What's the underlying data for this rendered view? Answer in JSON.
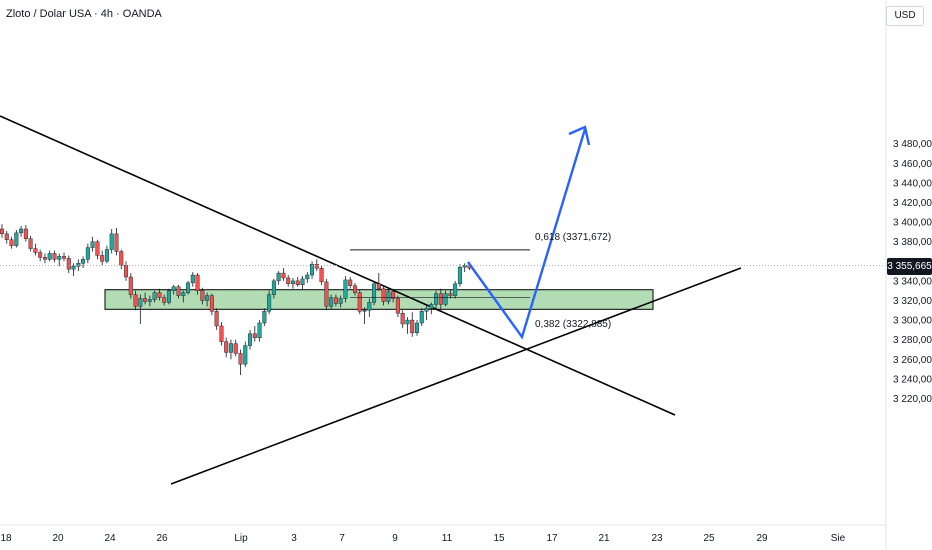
{
  "header": {
    "title": "Zloto / Dolar USA · 4h · OANDA",
    "currency": "USD"
  },
  "price_tag": "3 355,665",
  "fib_levels": [
    {
      "label": "0,618 (3371,672)",
      "value": 3371.672
    },
    {
      "label": "0,382 (3322,885)",
      "value": 3322.885
    }
  ],
  "colors": {
    "up": "#26a69a",
    "down": "#ef5350",
    "zone_fill": "#a5d6a7",
    "zone_border": "#000000",
    "projection": "#2962ff",
    "trendline": "#000000"
  },
  "chart_data": {
    "type": "candlestick",
    "y_axis": {
      "ticks": [
        "3 480,000",
        "3 460,000",
        "3 440,000",
        "3 420,000",
        "3 400,000",
        "3 380,000",
        "3 360,000",
        "3 340,000",
        "3 320,000",
        "3 300,000",
        "3 280,000",
        "3 260,000",
        "3 240,000",
        "3 220,000"
      ],
      "tick_values": [
        3480,
        3460,
        3440,
        3420,
        3400,
        3380,
        3360,
        3340,
        3320,
        3300,
        3280,
        3260,
        3240,
        3220
      ],
      "range": [
        3211,
        3500
      ]
    },
    "x_axis": {
      "labels": [
        "18",
        "20",
        "24",
        "26",
        "Lip",
        "3",
        "7",
        "9",
        "11",
        "15",
        "17",
        "21",
        "23",
        "25",
        "29",
        "Sie"
      ]
    },
    "current_price": 3355.665,
    "support_zone": [
      3311,
      3331
    ],
    "candles": [
      [
        3393,
        3398,
        3384,
        3388
      ],
      [
        3388,
        3391,
        3378,
        3382
      ],
      [
        3382,
        3385,
        3373,
        3376
      ],
      [
        3376,
        3392,
        3374,
        3389
      ],
      [
        3389,
        3396,
        3385,
        3393
      ],
      [
        3393,
        3397,
        3380,
        3383
      ],
      [
        3383,
        3386,
        3370,
        3373
      ],
      [
        3373,
        3378,
        3366,
        3369
      ],
      [
        3369,
        3372,
        3360,
        3364
      ],
      [
        3364,
        3368,
        3358,
        3362
      ],
      [
        3362,
        3371,
        3360,
        3368
      ],
      [
        3368,
        3371,
        3359,
        3362
      ],
      [
        3362,
        3368,
        3355,
        3365
      ],
      [
        3365,
        3369,
        3360,
        3363
      ],
      [
        3363,
        3366,
        3348,
        3352
      ],
      [
        3352,
        3358,
        3345,
        3355
      ],
      [
        3355,
        3362,
        3350,
        3358
      ],
      [
        3358,
        3365,
        3353,
        3362
      ],
      [
        3362,
        3378,
        3358,
        3374
      ],
      [
        3374,
        3385,
        3370,
        3380
      ],
      [
        3380,
        3382,
        3362,
        3366
      ],
      [
        3366,
        3371,
        3356,
        3360
      ],
      [
        3360,
        3376,
        3358,
        3372
      ],
      [
        3372,
        3393,
        3368,
        3388
      ],
      [
        3388,
        3394,
        3366,
        3370
      ],
      [
        3370,
        3372,
        3352,
        3356
      ],
      [
        3356,
        3360,
        3340,
        3344
      ],
      [
        3344,
        3348,
        3322,
        3326
      ],
      [
        3326,
        3330,
        3310,
        3314
      ],
      [
        3314,
        3326,
        3296,
        3322
      ],
      [
        3322,
        3328,
        3316,
        3319
      ],
      [
        3319,
        3325,
        3314,
        3321
      ],
      [
        3321,
        3330,
        3318,
        3328
      ],
      [
        3328,
        3332,
        3320,
        3323
      ],
      [
        3323,
        3326,
        3315,
        3318
      ],
      [
        3318,
        3332,
        3316,
        3330
      ],
      [
        3330,
        3336,
        3326,
        3334
      ],
      [
        3334,
        3336,
        3322,
        3325
      ],
      [
        3325,
        3330,
        3318,
        3328
      ],
      [
        3328,
        3340,
        3326,
        3338
      ],
      [
        3338,
        3349,
        3334,
        3346
      ],
      [
        3346,
        3348,
        3326,
        3330
      ],
      [
        3330,
        3333,
        3316,
        3320
      ],
      [
        3320,
        3328,
        3314,
        3325
      ],
      [
        3325,
        3327,
        3305,
        3309
      ],
      [
        3309,
        3312,
        3290,
        3294
      ],
      [
        3294,
        3298,
        3274,
        3278
      ],
      [
        3278,
        3282,
        3262,
        3267
      ],
      [
        3267,
        3280,
        3260,
        3276
      ],
      [
        3276,
        3280,
        3263,
        3266
      ],
      [
        3266,
        3270,
        3244,
        3255
      ],
      [
        3255,
        3278,
        3252,
        3274
      ],
      [
        3274,
        3290,
        3270,
        3286
      ],
      [
        3286,
        3294,
        3278,
        3282
      ],
      [
        3282,
        3300,
        3278,
        3297
      ],
      [
        3297,
        3312,
        3294,
        3309
      ],
      [
        3309,
        3330,
        3306,
        3326
      ],
      [
        3326,
        3342,
        3322,
        3340
      ],
      [
        3340,
        3350,
        3336,
        3348
      ],
      [
        3348,
        3353,
        3340,
        3343
      ],
      [
        3343,
        3346,
        3334,
        3337
      ],
      [
        3337,
        3343,
        3332,
        3340
      ],
      [
        3340,
        3344,
        3334,
        3336
      ],
      [
        3336,
        3345,
        3331,
        3342
      ],
      [
        3342,
        3349,
        3338,
        3346
      ],
      [
        3346,
        3360,
        3342,
        3357
      ],
      [
        3357,
        3362,
        3350,
        3353
      ],
      [
        3353,
        3356,
        3336,
        3339
      ],
      [
        3339,
        3342,
        3310,
        3314
      ],
      [
        3314,
        3326,
        3311,
        3323
      ],
      [
        3323,
        3326,
        3314,
        3317
      ],
      [
        3317,
        3325,
        3313,
        3322
      ],
      [
        3322,
        3345,
        3318,
        3341
      ],
      [
        3341,
        3344,
        3332,
        3335
      ],
      [
        3335,
        3338,
        3325,
        3328
      ],
      [
        3328,
        3331,
        3306,
        3309
      ],
      [
        3309,
        3313,
        3296,
        3310
      ],
      [
        3310,
        3322,
        3303,
        3318
      ],
      [
        3318,
        3340,
        3315,
        3337
      ],
      [
        3337,
        3348,
        3330,
        3332
      ],
      [
        3332,
        3334,
        3315,
        3319
      ],
      [
        3319,
        3333,
        3316,
        3329
      ],
      [
        3329,
        3332,
        3318,
        3322
      ],
      [
        3322,
        3325,
        3303,
        3307
      ],
      [
        3307,
        3310,
        3292,
        3296
      ],
      [
        3296,
        3303,
        3286,
        3300
      ],
      [
        3300,
        3308,
        3283,
        3287
      ],
      [
        3287,
        3300,
        3284,
        3297
      ],
      [
        3297,
        3312,
        3294,
        3309
      ],
      [
        3309,
        3315,
        3300,
        3312
      ],
      [
        3312,
        3318,
        3306,
        3316
      ],
      [
        3316,
        3330,
        3312,
        3327
      ],
      [
        3327,
        3332,
        3310,
        3316
      ],
      [
        3316,
        3330,
        3314,
        3327
      ],
      [
        3327,
        3331,
        3322,
        3325
      ],
      [
        3325,
        3340,
        3322,
        3337
      ],
      [
        3337,
        3357,
        3334,
        3354
      ],
      [
        3354,
        3358,
        3349,
        3356
      ],
      [
        3356,
        3359,
        3351,
        3353
      ]
    ]
  }
}
